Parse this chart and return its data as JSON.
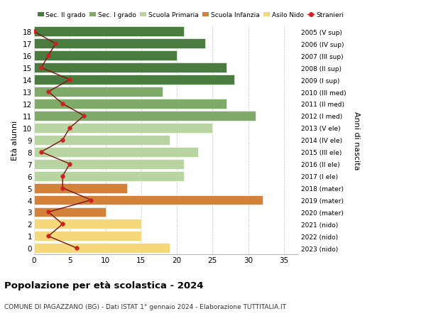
{
  "ages": [
    18,
    17,
    16,
    15,
    14,
    13,
    12,
    11,
    10,
    9,
    8,
    7,
    6,
    5,
    4,
    3,
    2,
    1,
    0
  ],
  "bar_values": [
    21,
    24,
    20,
    27,
    28,
    18,
    27,
    31,
    25,
    19,
    23,
    21,
    21,
    13,
    32,
    10,
    15,
    15,
    19
  ],
  "bar_colors": [
    "#4a7c3f",
    "#4a7c3f",
    "#4a7c3f",
    "#4a7c3f",
    "#4a7c3f",
    "#7faa6a",
    "#7faa6a",
    "#7faa6a",
    "#b8d4a0",
    "#b8d4a0",
    "#b8d4a0",
    "#b8d4a0",
    "#b8d4a0",
    "#d4813a",
    "#d4813a",
    "#d4813a",
    "#f5d87a",
    "#f5d87a",
    "#f5d87a"
  ],
  "stranieri_values": [
    0,
    3,
    2,
    1,
    5,
    2,
    4,
    7,
    5,
    4,
    1,
    5,
    4,
    4,
    8,
    2,
    4,
    2,
    6
  ],
  "right_labels": [
    "2005 (V sup)",
    "2006 (IV sup)",
    "2007 (III sup)",
    "2008 (II sup)",
    "2009 (I sup)",
    "2010 (III med)",
    "2011 (II med)",
    "2012 (I med)",
    "2013 (V ele)",
    "2014 (IV ele)",
    "2015 (III ele)",
    "2016 (II ele)",
    "2017 (I ele)",
    "2018 (mater)",
    "2019 (mater)",
    "2020 (mater)",
    "2021 (nido)",
    "2022 (nido)",
    "2023 (nido)"
  ],
  "legend_labels": [
    "Sec. II grado",
    "Sec. I grado",
    "Scuola Primaria",
    "Scuola Infanzia",
    "Asilo Nido",
    "Stranieri"
  ],
  "legend_colors": [
    "#4a7c3f",
    "#7faa6a",
    "#b8d4a0",
    "#d4813a",
    "#f5d87a",
    "#cc2222"
  ],
  "ylabel_left": "Età alunni",
  "ylabel_right": "Anni di nascita",
  "title": "Popolazione per età scolastica - 2024",
  "subtitle": "COMUNE DI PAGAZZANO (BG) - Dati ISTAT 1° gennaio 2024 - Elaborazione TUTTITALIA.IT",
  "xlim": [
    0,
    37
  ],
  "xticks": [
    0,
    5,
    10,
    15,
    20,
    25,
    30,
    35
  ]
}
